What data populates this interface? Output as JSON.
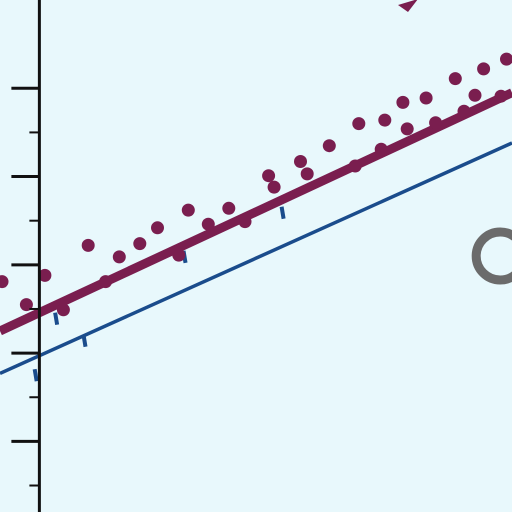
{
  "chart_data": {
    "type": "scatter",
    "title": "",
    "xlabel": "",
    "ylabel": "",
    "grid": false,
    "xlim": [
      -10,
      120
    ],
    "ylim": [
      -48,
      10
    ],
    "y_ticks": [
      0,
      -10,
      -20,
      -30,
      -40
    ],
    "series": [
      {
        "kind": "points",
        "color": "#7a1e4f",
        "x": [
          -9.5,
          -3.3,
          1.4,
          6.1,
          12.4,
          16.8,
          20.3,
          25.5,
          30.0,
          35.4,
          37.8,
          42.9,
          48.1,
          52.2,
          58.2,
          59.6,
          66.3,
          68.0,
          73.6,
          80.2,
          81.1,
          86.8,
          87.7,
          92.3,
          93.4,
          98.2,
          100.6,
          105.6,
          107.8,
          110.6,
          112.8,
          117.2,
          118.6
        ],
        "y": [
          -21.9,
          -24.5,
          -21.2,
          -25.1,
          -17.8,
          -21.9,
          -19.1,
          -17.6,
          -15.8,
          -18.9,
          -13.8,
          -15.4,
          -13.6,
          -15.1,
          -9.9,
          -11.2,
          -8.3,
          -9.7,
          -6.5,
          -8.8,
          -4.0,
          -6.9,
          -3.6,
          -1.6,
          -4.6,
          -1.1,
          -3.9,
          1.1,
          -2.6,
          -0.8,
          2.2,
          -0.9,
          3.3
        ]
      },
      {
        "kind": "fit",
        "color": "#7a1e4f",
        "x": [
          -10,
          120
        ],
        "y": [
          -27.5,
          -0.5
        ]
      },
      {
        "kind": "fit",
        "color": "#1a4c8c",
        "x": [
          -10,
          120
        ],
        "y": [
          -32.3,
          -6.2
        ]
      },
      {
        "kind": "markers",
        "color": "#1a4c8c",
        "x": [
          -1.2,
          4.0,
          11.2,
          36.6,
          61.5
        ],
        "y": [
          -32.5,
          -26.1,
          -28.6,
          -19.1,
          -14.1
        ]
      }
    ],
    "annotation": {
      "color": "#6b6b6b",
      "shape": "ring"
    }
  }
}
